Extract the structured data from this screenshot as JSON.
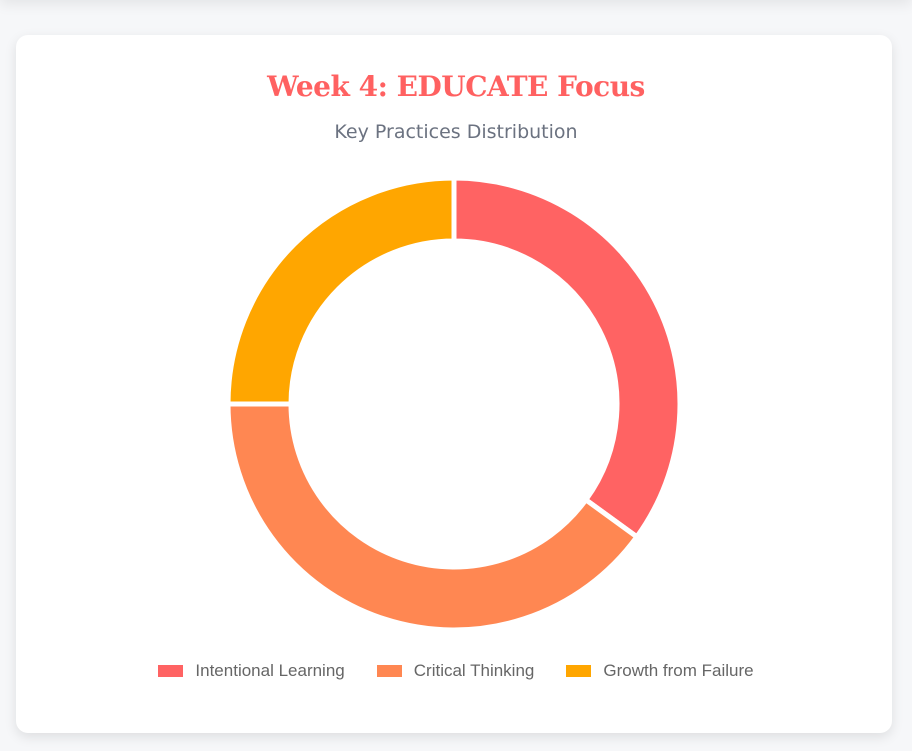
{
  "header": {
    "title": "Week 4: EDUCATE Focus",
    "subtitle": "Key Practices Distribution"
  },
  "chart_data": {
    "type": "doughnut",
    "title": "Week 4: EDUCATE Focus",
    "subtitle": "Key Practices Distribution",
    "categories": [
      "Intentional Learning",
      "Critical Thinking",
      "Growth from Failure"
    ],
    "values": [
      35,
      40,
      25
    ],
    "colors": [
      "#ff6363",
      "#ff8752",
      "#ffa600"
    ],
    "legend_position": "bottom",
    "cutout": "72%"
  },
  "legend": {
    "items": [
      {
        "label": "Intentional Learning",
        "color": "#ff6363"
      },
      {
        "label": "Critical Thinking",
        "color": "#ff8752"
      },
      {
        "label": "Growth from Failure",
        "color": "#ffa600"
      }
    ]
  }
}
